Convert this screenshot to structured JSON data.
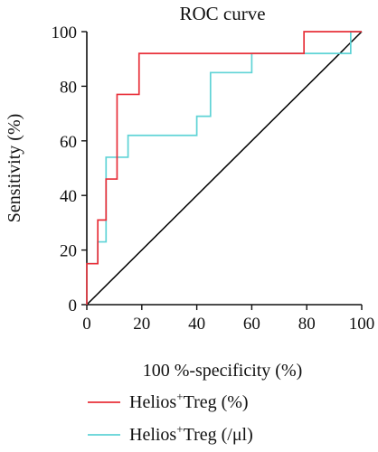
{
  "chart_data": {
    "type": "line",
    "title": "ROC curve",
    "xlabel": "100 %-specificity (%)",
    "ylabel": "Sensitivity (%)",
    "xlim": [
      0,
      100
    ],
    "ylim": [
      0,
      100
    ],
    "xticks": [
      0,
      20,
      40,
      60,
      80,
      100
    ],
    "yticks": [
      0,
      20,
      40,
      60,
      80,
      100
    ],
    "grid": false,
    "legend_position": "bottom",
    "reference_line": {
      "x": [
        0,
        100
      ],
      "y": [
        0,
        100
      ],
      "color": "#000000"
    },
    "series": [
      {
        "legend": {
          "main": "Helios",
          "sup": "+",
          "rest": "Treg (%)"
        },
        "color": "#e8303a",
        "x": [
          0,
          0,
          4,
          4,
          7,
          7,
          11,
          11,
          19,
          19,
          79,
          79,
          100
        ],
        "y": [
          0,
          15,
          15,
          31,
          31,
          46,
          46,
          77,
          77,
          92,
          92,
          100,
          100
        ]
      },
      {
        "legend": {
          "main": "Helios",
          "sup": "+",
          "rest": "Treg (/μl)"
        },
        "color": "#5fd3d6",
        "x": [
          0,
          0,
          4,
          4,
          7,
          7,
          15,
          15,
          40,
          40,
          45,
          45,
          60,
          60,
          96,
          96,
          100
        ],
        "y": [
          0,
          15,
          15,
          23,
          23,
          54,
          54,
          62,
          62,
          69,
          69,
          85,
          85,
          92,
          92,
          100,
          100
        ]
      }
    ]
  }
}
